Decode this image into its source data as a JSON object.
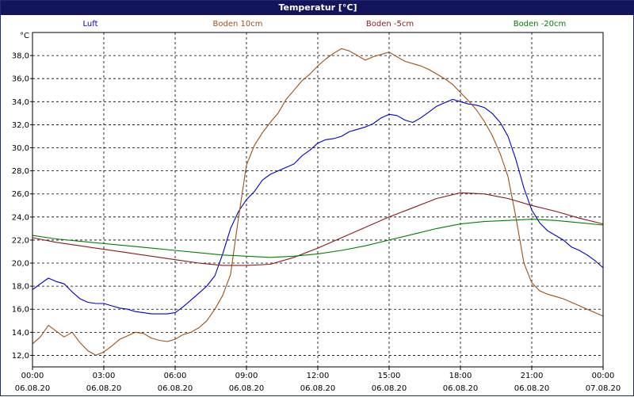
{
  "window": {
    "title": "Temperatur [°C]"
  },
  "chart_data": {
    "type": "line",
    "title": "Temperatur [°C]",
    "ylabel": "°C",
    "xlabel": "",
    "ylim": [
      11,
      40
    ],
    "xlim": [
      0,
      24
    ],
    "grid": true,
    "legend_position": "top",
    "y_ticks": [
      "12,0",
      "14,0",
      "16,0",
      "18,0",
      "20,0",
      "22,0",
      "24,0",
      "26,0",
      "28,0",
      "30,0",
      "32,0",
      "34,0",
      "36,0",
      "38,0"
    ],
    "x_ticks": [
      {
        "time": "00:00",
        "date": "06.08.20"
      },
      {
        "time": "03:00",
        "date": "06.08.20"
      },
      {
        "time": "06:00",
        "date": "06.08.20"
      },
      {
        "time": "09:00",
        "date": "06.08.20"
      },
      {
        "time": "12:00",
        "date": "06.08.20"
      },
      {
        "time": "15:00",
        "date": "06.08.20"
      },
      {
        "time": "18:00",
        "date": "06.08.20"
      },
      {
        "time": "21:00",
        "date": "06.08.20"
      },
      {
        "time": "00:00",
        "date": "07.08.20"
      }
    ],
    "series": [
      {
        "name": "Luft",
        "color": "#0000cc",
        "x": [
          0,
          0.33,
          0.67,
          1,
          1.33,
          1.67,
          2,
          2.33,
          2.67,
          3,
          3.33,
          3.67,
          4,
          4.33,
          4.67,
          5,
          5.33,
          5.67,
          6,
          6.33,
          6.67,
          7,
          7.33,
          7.67,
          8,
          8.33,
          8.67,
          9,
          9.33,
          9.67,
          10,
          10.33,
          10.67,
          11,
          11.33,
          11.67,
          12,
          12.33,
          12.67,
          13,
          13.33,
          13.67,
          14,
          14.33,
          14.67,
          15,
          15.33,
          15.67,
          16,
          16.33,
          16.67,
          17,
          17.33,
          17.67,
          18,
          18.33,
          18.67,
          19,
          19.33,
          19.67,
          20,
          20.33,
          20.67,
          21,
          21.33,
          21.67,
          22,
          22.33,
          22.67,
          23,
          23.33,
          23.67,
          24
        ],
        "values": [
          17.7,
          18.2,
          18.7,
          18.4,
          18.2,
          17.5,
          16.9,
          16.6,
          16.5,
          16.5,
          16.3,
          16.1,
          16.0,
          15.8,
          15.7,
          15.6,
          15.6,
          15.6,
          15.7,
          16.2,
          16.8,
          17.4,
          18.0,
          18.9,
          20.8,
          23.0,
          24.5,
          25.5,
          26.2,
          27.2,
          27.7,
          28.0,
          28.3,
          28.6,
          29.3,
          29.8,
          30.4,
          30.7,
          30.8,
          31.0,
          31.4,
          31.6,
          31.8,
          32.1,
          32.6,
          32.9,
          32.8,
          32.4,
          32.2,
          32.6,
          33.1,
          33.6,
          33.9,
          34.2,
          34.0,
          33.8,
          33.7,
          33.5,
          33.0,
          32.2,
          31.0,
          29.0,
          26.5,
          24.6,
          23.5,
          22.8,
          22.4,
          22.0,
          21.4,
          21.1,
          20.7,
          20.2,
          19.6
        ]
      },
      {
        "name": "Boden 10cm",
        "color": "#a05010",
        "x": [
          0,
          0.33,
          0.67,
          1,
          1.33,
          1.67,
          2,
          2.33,
          2.67,
          3,
          3.33,
          3.67,
          4,
          4.33,
          4.67,
          5,
          5.33,
          5.67,
          6,
          6.33,
          6.67,
          7,
          7.33,
          7.67,
          8,
          8.33,
          8.67,
          9,
          9.33,
          9.67,
          10,
          10.33,
          10.67,
          11,
          11.33,
          11.67,
          12,
          12.33,
          12.67,
          13,
          13.33,
          13.67,
          14,
          14.33,
          14.67,
          15,
          15.33,
          15.67,
          16,
          16.33,
          16.67,
          17,
          17.33,
          17.67,
          18,
          18.33,
          18.67,
          19,
          19.33,
          19.67,
          20,
          20.33,
          20.67,
          21,
          21.33,
          21.67,
          22,
          22.33,
          22.67,
          23,
          23.33,
          23.67,
          24
        ],
        "values": [
          13.0,
          13.6,
          14.6,
          14.1,
          13.6,
          14.0,
          13.1,
          12.4,
          12.0,
          12.3,
          12.8,
          13.4,
          13.7,
          14.0,
          13.9,
          13.5,
          13.3,
          13.2,
          13.4,
          13.8,
          14.0,
          14.4,
          15.0,
          16.0,
          17.2,
          19.0,
          24.0,
          28.5,
          30.2,
          31.3,
          32.2,
          33.0,
          34.2,
          35.0,
          35.8,
          36.4,
          37.1,
          37.7,
          38.2,
          38.6,
          38.4,
          38.0,
          37.6,
          37.9,
          38.1,
          38.3,
          37.9,
          37.5,
          37.3,
          37.1,
          36.8,
          36.4,
          36.0,
          35.5,
          34.8,
          34.1,
          33.3,
          32.3,
          31.1,
          29.5,
          27.5,
          24.0,
          20.0,
          18.3,
          17.6,
          17.3,
          17.1,
          16.9,
          16.6,
          16.3,
          16.0,
          15.7,
          15.4
        ]
      },
      {
        "name": "Boden -5cm",
        "color": "#8b1a1a",
        "x": [
          0,
          1,
          2,
          3,
          4,
          5,
          6,
          7,
          8,
          9,
          10,
          11,
          12,
          13,
          14,
          15,
          16,
          17,
          18,
          19,
          20,
          21,
          22,
          23,
          24
        ],
        "values": [
          22.2,
          21.8,
          21.5,
          21.2,
          20.9,
          20.6,
          20.3,
          20.0,
          19.8,
          19.8,
          19.9,
          20.5,
          21.3,
          22.2,
          23.1,
          24.0,
          24.8,
          25.6,
          26.1,
          26.0,
          25.6,
          25.0,
          24.5,
          23.9,
          23.4
        ]
      },
      {
        "name": "Boden -20cm",
        "color": "#008000",
        "x": [
          0,
          1,
          2,
          3,
          4,
          5,
          6,
          7,
          8,
          9,
          10,
          11,
          12,
          13,
          14,
          15,
          16,
          17,
          18,
          19,
          20,
          21,
          22,
          23,
          24
        ],
        "values": [
          22.4,
          22.1,
          21.9,
          21.7,
          21.5,
          21.3,
          21.1,
          20.9,
          20.7,
          20.6,
          20.5,
          20.6,
          20.8,
          21.1,
          21.5,
          22.0,
          22.5,
          23.0,
          23.4,
          23.6,
          23.7,
          23.8,
          23.7,
          23.5,
          23.3
        ]
      }
    ]
  }
}
